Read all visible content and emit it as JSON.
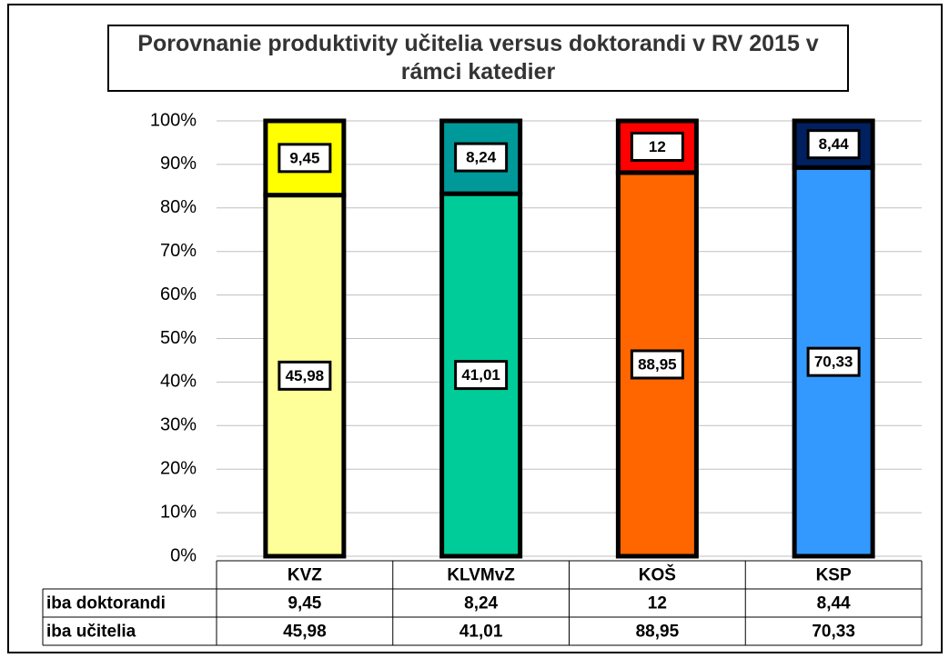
{
  "chart_data": {
    "type": "bar",
    "stacked": "percent",
    "title": "Porovnanie produktivity učitelia versus doktorandi v RV 2015 v rámci katedier",
    "categories": [
      "KVZ",
      "KLVMvZ",
      "KOŠ",
      "KSP"
    ],
    "series": [
      {
        "name": "iba doktorandi",
        "colors": [
          "#ffff00",
          "#009999",
          "#ff0000",
          "#002060"
        ],
        "values": [
          9.45,
          8.24,
          12,
          8.44
        ],
        "value_labels": [
          "9,45",
          "8,24",
          "12",
          "8,44"
        ]
      },
      {
        "name": "iba učitelia",
        "colors": [
          "#ffff99",
          "#00cc99",
          "#ff6600",
          "#3399ff"
        ],
        "values": [
          45.98,
          41.01,
          88.95,
          70.33
        ],
        "value_labels": [
          "45,98",
          "41,01",
          "88,95",
          "70,33"
        ]
      }
    ],
    "ylim": [
      0,
      100
    ],
    "yticks": [
      {
        "value": 0,
        "label": "0%"
      },
      {
        "value": 10,
        "label": "10%"
      },
      {
        "value": 20,
        "label": "20%"
      },
      {
        "value": 30,
        "label": "30%"
      },
      {
        "value": 40,
        "label": "40%"
      },
      {
        "value": 50,
        "label": "50%"
      },
      {
        "value": 60,
        "label": "60%"
      },
      {
        "value": 70,
        "label": "70%"
      },
      {
        "value": 80,
        "label": "80%"
      },
      {
        "value": 90,
        "label": "90%"
      },
      {
        "value": 100,
        "label": "100%"
      }
    ],
    "grid": true,
    "data_table": true
  }
}
